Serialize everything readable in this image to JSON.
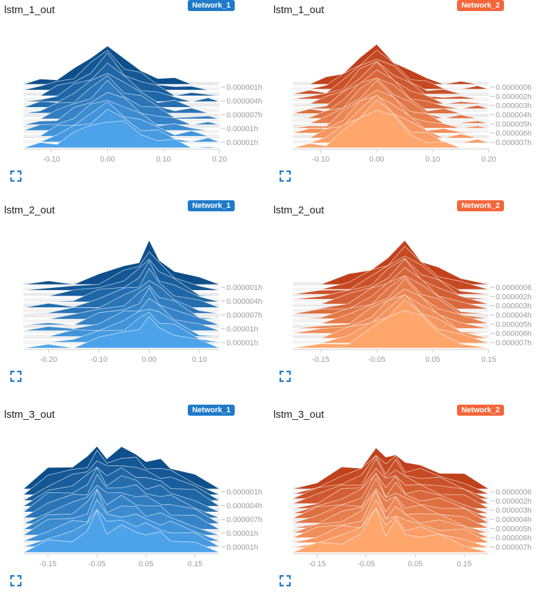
{
  "colors": {
    "network_1": "#1f7ac9",
    "network_2": "#f4663a"
  },
  "panels": [
    {
      "title": "lstm_1_out",
      "badge": "Network_1",
      "network": "network_1",
      "top_color": "#0d4f8b",
      "bottom_color": "#4da3ea",
      "xticks": [
        "-0.10",
        "0.00",
        "0.10",
        "0.20"
      ],
      "ylabels": [
        "0.000001h",
        "0.000004h",
        "0.000007h",
        "0.00001h",
        "0.00001h"
      ]
    },
    {
      "title": "lstm_1_out",
      "badge": "Network_2",
      "network": "network_2",
      "top_color": "#c0411b",
      "bottom_color": "#ffa66d",
      "xticks": [
        "-0.10",
        "0.00",
        "0.10",
        "0.20"
      ],
      "ylabels": [
        "0.0000006h",
        "0.000002h",
        "0.000003h",
        "0.000004h",
        "0.000005h",
        "0.000006h",
        "0.000007h"
      ]
    },
    {
      "title": "lstm_2_out",
      "badge": "Network_1",
      "network": "network_1",
      "top_color": "#0d4f8b",
      "bottom_color": "#4da3ea",
      "xticks": [
        "-0.20",
        "-0.10",
        "0.00",
        "0.10"
      ],
      "ylabels": [
        "0.000001h",
        "0.000004h",
        "0.000007h",
        "0.00001h",
        "0.00001h"
      ]
    },
    {
      "title": "lstm_2_out",
      "badge": "Network_2",
      "network": "network_2",
      "top_color": "#c0411b",
      "bottom_color": "#ffa66d",
      "xticks": [
        "-0.15",
        "-0.05",
        "0.05",
        "0.15"
      ],
      "ylabels": [
        "0.0000006h",
        "0.000002h",
        "0.000003h",
        "0.000004h",
        "0.000005h",
        "0.000006h",
        "0.000007h"
      ]
    },
    {
      "title": "lstm_3_out",
      "badge": "Network_1",
      "network": "network_1",
      "top_color": "#0d4f8b",
      "bottom_color": "#4da3ea",
      "xticks": [
        "-0.15",
        "-0.05",
        "0.05",
        "0.15"
      ],
      "ylabels": [
        "0.000001h",
        "0.000004h",
        "0.000007h",
        "0.00001h",
        "0.00001h"
      ]
    },
    {
      "title": "lstm_3_out",
      "badge": "Network_2",
      "network": "network_2",
      "top_color": "#c0411b",
      "bottom_color": "#ffa66d",
      "xticks": [
        "-0.15",
        "-0.05",
        "0.05",
        "0.15"
      ],
      "ylabels": [
        "0.0000006h",
        "0.000002h",
        "0.000003h",
        "0.000004h",
        "0.000005h",
        "0.000006h",
        "0.000007h"
      ]
    }
  ],
  "chart_data": [
    {
      "type": "area",
      "title": "lstm_1_out",
      "series_name": "Network_1",
      "xlim": [
        -0.15,
        0.2
      ],
      "slices": 12,
      "x": [
        -0.15,
        -0.12,
        -0.09,
        -0.06,
        -0.03,
        0.0,
        0.03,
        0.06,
        0.09,
        0.12,
        0.15,
        0.18,
        0.2
      ],
      "peak_top": [
        0.0,
        0.06,
        0.18,
        0.35,
        0.6,
        1.0,
        0.55,
        0.34,
        0.18,
        0.08,
        0.03,
        0.01,
        0.0
      ],
      "peak_bottom": [
        0.0,
        0.05,
        0.15,
        0.28,
        0.45,
        0.6,
        0.48,
        0.3,
        0.18,
        0.1,
        0.04,
        0.01,
        0.0
      ]
    },
    {
      "type": "area",
      "title": "lstm_1_out",
      "series_name": "Network_2",
      "xlim": [
        -0.15,
        0.2
      ],
      "slices": 14,
      "x": [
        -0.15,
        -0.12,
        -0.09,
        -0.06,
        -0.03,
        0.0,
        0.03,
        0.06,
        0.09,
        0.12,
        0.15,
        0.18,
        0.2
      ],
      "peak_top": [
        0.0,
        0.02,
        0.1,
        0.3,
        0.65,
        0.9,
        0.6,
        0.3,
        0.12,
        0.03,
        0.0,
        0.0,
        0.0
      ],
      "peak_bottom": [
        0.0,
        0.03,
        0.12,
        0.32,
        0.6,
        0.85,
        0.6,
        0.3,
        0.14,
        0.05,
        0.01,
        0.0,
        0.0
      ]
    },
    {
      "type": "area",
      "title": "lstm_2_out",
      "series_name": "Network_1",
      "xlim": [
        -0.25,
        0.14
      ],
      "slices": 12,
      "x": [
        -0.25,
        -0.2,
        -0.15,
        -0.1,
        -0.05,
        -0.02,
        0.0,
        0.02,
        0.05,
        0.1,
        0.14
      ],
      "peak_top": [
        0.0,
        0.02,
        0.08,
        0.22,
        0.42,
        0.6,
        1.0,
        0.6,
        0.36,
        0.1,
        0.0
      ],
      "peak_bottom": [
        0.0,
        0.02,
        0.06,
        0.18,
        0.32,
        0.45,
        0.58,
        0.45,
        0.3,
        0.1,
        0.0
      ]
    },
    {
      "type": "area",
      "title": "lstm_2_out",
      "series_name": "Network_2",
      "xlim": [
        -0.2,
        0.15
      ],
      "slices": 14,
      "x": [
        -0.2,
        -0.15,
        -0.1,
        -0.06,
        -0.03,
        0.0,
        0.03,
        0.06,
        0.1,
        0.15
      ],
      "peak_top": [
        0.0,
        0.03,
        0.18,
        0.4,
        0.65,
        1.0,
        0.62,
        0.38,
        0.12,
        0.0
      ],
      "peak_bottom": [
        0.0,
        0.03,
        0.16,
        0.38,
        0.62,
        0.85,
        0.6,
        0.36,
        0.12,
        0.0
      ]
    },
    {
      "type": "area",
      "title": "lstm_3_out",
      "series_name": "Network_1",
      "xlim": [
        -0.2,
        0.2
      ],
      "slices": 12,
      "x": [
        -0.2,
        -0.15,
        -0.1,
        -0.07,
        -0.05,
        -0.03,
        0.0,
        0.03,
        0.05,
        0.08,
        0.1,
        0.15,
        0.2
      ],
      "peak_top": [
        0.0,
        0.45,
        0.6,
        0.75,
        1.0,
        0.8,
        0.95,
        0.85,
        0.7,
        0.65,
        0.55,
        0.35,
        0.0
      ],
      "peak_bottom": [
        0.0,
        0.2,
        0.3,
        0.4,
        0.85,
        0.45,
        0.5,
        0.45,
        0.4,
        0.35,
        0.3,
        0.2,
        0.0
      ]
    },
    {
      "type": "area",
      "title": "lstm_3_out",
      "series_name": "Network_2",
      "xlim": [
        -0.2,
        0.2
      ],
      "slices": 14,
      "x": [
        -0.2,
        -0.15,
        -0.1,
        -0.06,
        -0.03,
        -0.01,
        0.01,
        0.03,
        0.06,
        0.1,
        0.15,
        0.2
      ],
      "peak_top": [
        0.0,
        0.2,
        0.45,
        0.55,
        1.0,
        0.7,
        0.9,
        0.6,
        0.55,
        0.45,
        0.3,
        0.0
      ],
      "peak_bottom": [
        0.0,
        0.15,
        0.25,
        0.35,
        0.9,
        0.4,
        0.6,
        0.4,
        0.35,
        0.3,
        0.2,
        0.0
      ]
    }
  ]
}
